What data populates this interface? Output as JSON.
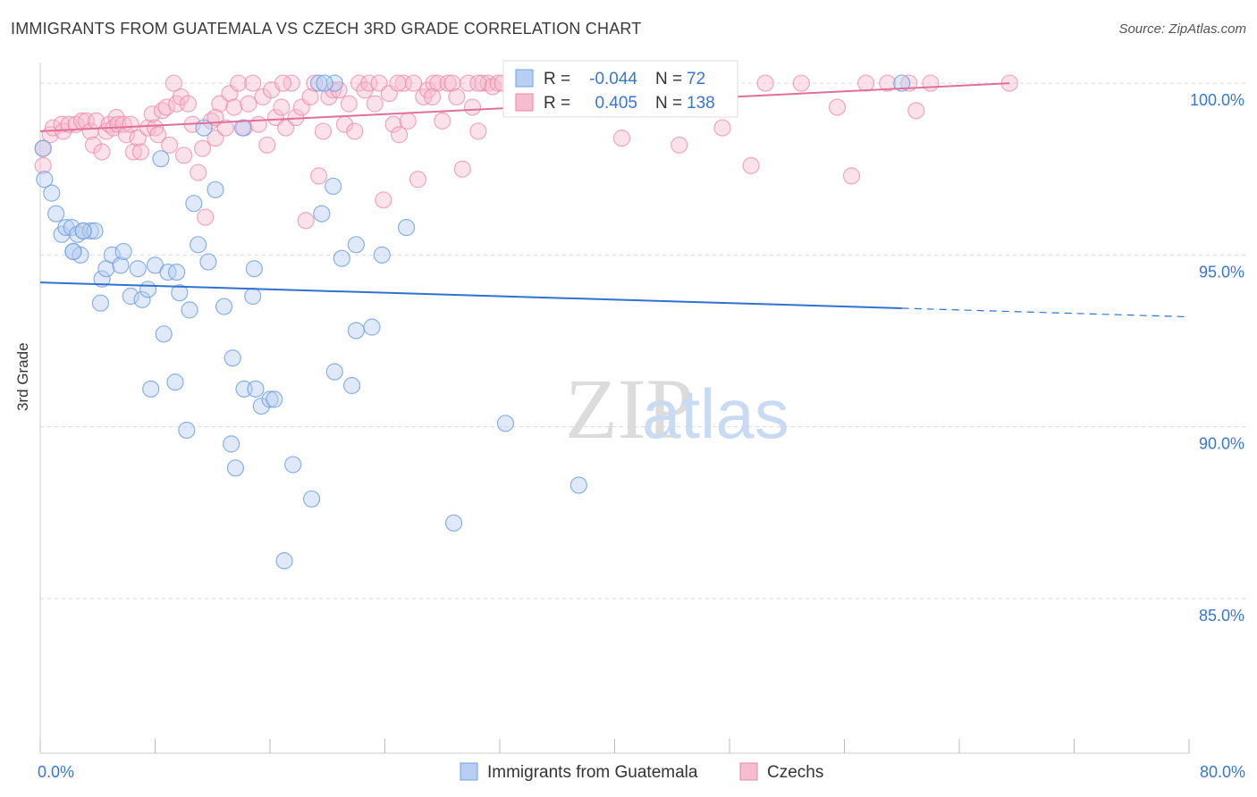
{
  "title": "IMMIGRANTS FROM GUATEMALA VS CZECH 3RD GRADE CORRELATION CHART",
  "source": "Source: ZipAtlas.com",
  "watermark": {
    "zip": "ZIP",
    "atlas": "atlas"
  },
  "colors": {
    "blue": "#6f9fe0",
    "blue_fill": "#b9cff2",
    "blue_line": "#2f72cf",
    "pink": "#ea86a8",
    "pink_fill": "#f6bccf",
    "pink_line": "#e0709a",
    "tick_text": "#3b76cc",
    "grid": "#d9d9d9"
  },
  "legend": {
    "r_label": "R =",
    "n_label": "N =",
    "rows": [
      {
        "r": "-0.044",
        "n": "72"
      },
      {
        "r": "0.405",
        "n": "138"
      }
    ]
  },
  "chart_data": {
    "type": "scatter",
    "title": "IMMIGRANTS FROM GUATEMALA VS CZECH 3RD GRADE CORRELATION CHART",
    "xlabel": "",
    "ylabel": "3rd Grade",
    "xlim": [
      0,
      80
    ],
    "ylim": [
      80.5,
      100.6
    ],
    "x_tick_labels": [
      {
        "value": 0,
        "label": "0.0%"
      },
      {
        "value": 80,
        "label": "80.0%"
      }
    ],
    "y_ticks": [
      {
        "value": 100,
        "label": "100.0%"
      },
      {
        "value": 95,
        "label": "95.0%"
      },
      {
        "value": 90,
        "label": "90.0%"
      },
      {
        "value": 85,
        "label": "85.0%"
      }
    ],
    "grid": "horizontal dashed",
    "series": [
      {
        "name": "Immigrants from Guatemala",
        "trend": {
          "x0": 0,
          "y0": 94.2,
          "x1": 60,
          "y1": 93.45,
          "dash_to_x": 80,
          "dash_to_y": 93.2
        },
        "points": [
          [
            0.2,
            98.1
          ],
          [
            0.3,
            97.2
          ],
          [
            0.8,
            96.8
          ],
          [
            1.1,
            96.2
          ],
          [
            1.5,
            95.6
          ],
          [
            1.8,
            95.8
          ],
          [
            2.2,
            95.8
          ],
          [
            2.6,
            95.6
          ],
          [
            2.3,
            95.1
          ],
          [
            2.8,
            95.0
          ],
          [
            3.0,
            95.7
          ],
          [
            3.5,
            95.7
          ],
          [
            3.8,
            95.7
          ],
          [
            4.3,
            94.3
          ],
          [
            4.6,
            94.6
          ],
          [
            5.0,
            95.0
          ],
          [
            5.6,
            94.7
          ],
          [
            5.8,
            95.1
          ],
          [
            4.2,
            93.6
          ],
          [
            6.3,
            93.8
          ],
          [
            6.8,
            94.6
          ],
          [
            7.1,
            93.7
          ],
          [
            7.5,
            94.0
          ],
          [
            8.0,
            94.7
          ],
          [
            8.9,
            94.5
          ],
          [
            9.5,
            94.5
          ],
          [
            8.6,
            92.7
          ],
          [
            9.7,
            93.9
          ],
          [
            10.4,
            93.4
          ],
          [
            10.7,
            96.5
          ],
          [
            11.0,
            95.3
          ],
          [
            11.7,
            94.8
          ],
          [
            12.2,
            96.9
          ],
          [
            12.8,
            93.5
          ],
          [
            13.4,
            92.0
          ],
          [
            14.8,
            93.8
          ],
          [
            14.9,
            94.6
          ],
          [
            8.4,
            97.8
          ],
          [
            11.4,
            98.7
          ],
          [
            14.1,
            98.7
          ],
          [
            7.7,
            91.1
          ],
          [
            9.4,
            91.3
          ],
          [
            10.2,
            89.9
          ],
          [
            13.3,
            89.5
          ],
          [
            13.6,
            88.8
          ],
          [
            14.2,
            91.1
          ],
          [
            15.0,
            91.1
          ],
          [
            15.4,
            90.6
          ],
          [
            16.0,
            90.8
          ],
          [
            16.3,
            90.8
          ],
          [
            17.0,
            86.1
          ],
          [
            17.6,
            88.9
          ],
          [
            18.9,
            87.9
          ],
          [
            19.6,
            96.2
          ],
          [
            20.4,
            97.0
          ],
          [
            19.4,
            100.0
          ],
          [
            20.5,
            100.0
          ],
          [
            20.5,
            91.6
          ],
          [
            21.0,
            94.9
          ],
          [
            21.7,
            91.2
          ],
          [
            22.0,
            95.3
          ],
          [
            22.0,
            92.8
          ],
          [
            23.1,
            92.9
          ],
          [
            23.8,
            95.0
          ],
          [
            25.5,
            95.8
          ],
          [
            28.8,
            87.2
          ],
          [
            32.4,
            90.1
          ],
          [
            37.5,
            88.3
          ],
          [
            2.3,
            95.1
          ],
          [
            3.0,
            95.7
          ],
          [
            60.0,
            100.0
          ],
          [
            19.8,
            100.0
          ]
        ]
      },
      {
        "name": "Czechs",
        "trend": {
          "x0": 0,
          "y0": 98.6,
          "x1": 67.5,
          "y1": 100.0
        },
        "points": [
          [
            0.2,
            98.1
          ],
          [
            0.2,
            97.6
          ],
          [
            0.7,
            98.5
          ],
          [
            0.9,
            98.7
          ],
          [
            1.5,
            98.8
          ],
          [
            1.6,
            98.6
          ],
          [
            2.0,
            98.8
          ],
          [
            2.5,
            98.8
          ],
          [
            2.9,
            98.9
          ],
          [
            3.2,
            98.9
          ],
          [
            3.5,
            98.6
          ],
          [
            3.7,
            98.2
          ],
          [
            3.9,
            98.9
          ],
          [
            4.3,
            98.0
          ],
          [
            4.6,
            98.6
          ],
          [
            4.8,
            98.8
          ],
          [
            5.1,
            98.7
          ],
          [
            5.3,
            99.0
          ],
          [
            5.4,
            98.8
          ],
          [
            5.8,
            98.8
          ],
          [
            6.0,
            98.5
          ],
          [
            6.3,
            98.8
          ],
          [
            6.5,
            98.0
          ],
          [
            6.8,
            98.4
          ],
          [
            7.0,
            98.0
          ],
          [
            7.5,
            98.7
          ],
          [
            7.8,
            99.1
          ],
          [
            8.0,
            98.7
          ],
          [
            8.2,
            98.5
          ],
          [
            8.5,
            99.2
          ],
          [
            8.8,
            99.3
          ],
          [
            9.0,
            98.2
          ],
          [
            9.5,
            99.4
          ],
          [
            9.8,
            99.6
          ],
          [
            10.0,
            97.9
          ],
          [
            10.3,
            99.4
          ],
          [
            10.6,
            98.8
          ],
          [
            11.0,
            97.4
          ],
          [
            11.3,
            98.1
          ],
          [
            11.5,
            96.1
          ],
          [
            11.9,
            98.9
          ],
          [
            12.2,
            98.4
          ],
          [
            12.5,
            99.4
          ],
          [
            12.9,
            98.7
          ],
          [
            13.2,
            99.7
          ],
          [
            13.5,
            99.3
          ],
          [
            13.8,
            100.0
          ],
          [
            14.2,
            98.7
          ],
          [
            14.5,
            99.4
          ],
          [
            14.8,
            100.0
          ],
          [
            15.2,
            98.8
          ],
          [
            15.5,
            99.6
          ],
          [
            15.8,
            98.2
          ],
          [
            16.1,
            99.8
          ],
          [
            16.4,
            99.0
          ],
          [
            16.8,
            99.3
          ],
          [
            17.1,
            98.7
          ],
          [
            17.5,
            100.0
          ],
          [
            17.8,
            99.0
          ],
          [
            18.2,
            99.3
          ],
          [
            18.5,
            96.0
          ],
          [
            18.8,
            99.6
          ],
          [
            19.1,
            100.0
          ],
          [
            19.4,
            97.3
          ],
          [
            19.7,
            98.6
          ],
          [
            20.1,
            99.6
          ],
          [
            20.4,
            99.8
          ],
          [
            20.8,
            99.8
          ],
          [
            21.2,
            98.8
          ],
          [
            21.5,
            99.4
          ],
          [
            21.9,
            98.6
          ],
          [
            22.2,
            100.0
          ],
          [
            22.6,
            99.8
          ],
          [
            22.9,
            100.0
          ],
          [
            23.3,
            99.4
          ],
          [
            23.6,
            100.0
          ],
          [
            23.9,
            96.6
          ],
          [
            24.3,
            99.7
          ],
          [
            24.6,
            98.8
          ],
          [
            25.0,
            98.5
          ],
          [
            25.3,
            100.0
          ],
          [
            25.6,
            98.9
          ],
          [
            26.0,
            100.0
          ],
          [
            26.3,
            97.2
          ],
          [
            26.7,
            99.6
          ],
          [
            27.0,
            99.8
          ],
          [
            27.4,
            100.0
          ],
          [
            27.7,
            100.0
          ],
          [
            28.0,
            98.9
          ],
          [
            28.4,
            100.0
          ],
          [
            28.7,
            100.0
          ],
          [
            29.0,
            99.6
          ],
          [
            29.4,
            97.5
          ],
          [
            29.8,
            100.0
          ],
          [
            30.1,
            99.3
          ],
          [
            30.5,
            98.6
          ],
          [
            30.8,
            100.0
          ],
          [
            31.2,
            100.0
          ],
          [
            31.5,
            99.9
          ],
          [
            31.9,
            100.0
          ],
          [
            32.2,
            100.0
          ],
          [
            33.5,
            100.0
          ],
          [
            34.0,
            99.6
          ],
          [
            35.0,
            99.8
          ],
          [
            36.0,
            100.0
          ],
          [
            37.0,
            100.0
          ],
          [
            38.0,
            99.8
          ],
          [
            39.0,
            100.0
          ],
          [
            40.5,
            98.4
          ],
          [
            41.0,
            100.0
          ],
          [
            42.0,
            99.9
          ],
          [
            43.5,
            100.0
          ],
          [
            44.5,
            98.2
          ],
          [
            45.5,
            100.0
          ],
          [
            46.5,
            100.0
          ],
          [
            47.5,
            98.7
          ],
          [
            48.0,
            100.0
          ],
          [
            49.5,
            97.6
          ],
          [
            50.5,
            100.0
          ],
          [
            53.0,
            100.0
          ],
          [
            55.5,
            99.3
          ],
          [
            56.5,
            97.3
          ],
          [
            57.5,
            100.0
          ],
          [
            59.0,
            100.0
          ],
          [
            60.5,
            100.0
          ],
          [
            61.0,
            99.2
          ],
          [
            62.0,
            100.0
          ],
          [
            67.5,
            100.0
          ],
          [
            9.3,
            100.0
          ],
          [
            12.2,
            99.0
          ],
          [
            16.9,
            100.0
          ],
          [
            24.9,
            100.0
          ],
          [
            27.3,
            99.6
          ],
          [
            30.5,
            100.0
          ],
          [
            33.0,
            99.9
          ],
          [
            36.5,
            100.0
          ]
        ]
      }
    ]
  },
  "bottom_legend": [
    {
      "label": "Immigrants from Guatemala"
    },
    {
      "label": "Czechs"
    }
  ]
}
